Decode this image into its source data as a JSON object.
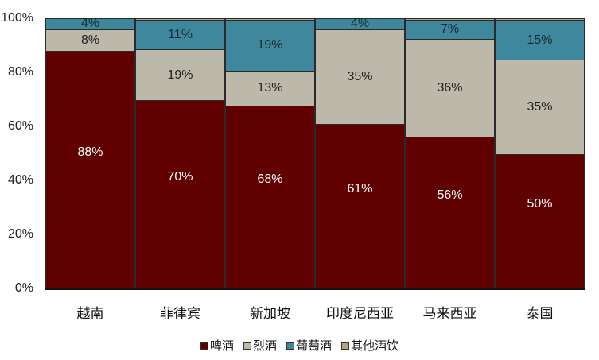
{
  "chart_data": {
    "type": "bar",
    "stacked": true,
    "percent_stacked": true,
    "title": "",
    "xlabel": "",
    "ylabel": "",
    "ylim": [
      0,
      100
    ],
    "yticks": [
      "0%",
      "20%",
      "40%",
      "60%",
      "80%",
      "100%"
    ],
    "grid": false,
    "legend_position": "bottom",
    "categories": [
      "越南",
      "菲律宾",
      "新加坡",
      "印度尼西亚",
      "马来西亚",
      "泰国"
    ],
    "series": [
      {
        "name": "啤酒",
        "color": "#600000",
        "label_color": "#ffffff",
        "values": [
          88,
          70,
          68,
          61,
          56,
          50
        ],
        "labels": [
          "88%",
          "70%",
          "68%",
          "61%",
          "56%",
          "50%"
        ]
      },
      {
        "name": "烈酒",
        "color": "#bdb9aa",
        "label_color": "#222222",
        "values": [
          8,
          19,
          13,
          35,
          36,
          35
        ],
        "labels": [
          "8%",
          "19%",
          "13%",
          "35%",
          "36%",
          "35%"
        ]
      },
      {
        "name": "葡萄酒",
        "color": "#3f879c",
        "label_color": "#1a2a35",
        "values": [
          4,
          11,
          19,
          4,
          7,
          15
        ],
        "labels": [
          "4%",
          "11%",
          "19%",
          "4%",
          "7%",
          "15%"
        ]
      },
      {
        "name": "其他酒饮",
        "color": "#b8a27a",
        "label_color": "#222222",
        "values": [
          0,
          0.5,
          0.5,
          0,
          0.5,
          0.5
        ],
        "labels": [
          "",
          "",
          "",
          "",
          "",
          ""
        ]
      }
    ]
  }
}
